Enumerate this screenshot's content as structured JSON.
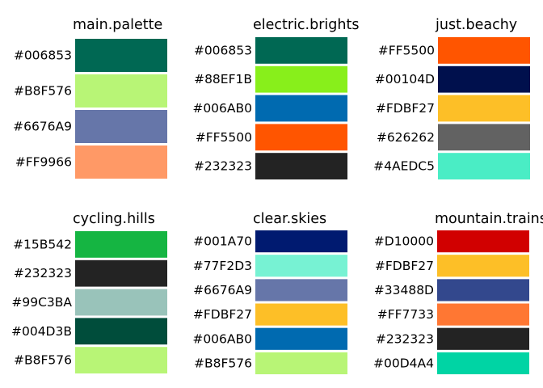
{
  "chart_data": [
    {
      "type": "bar",
      "title": "main.palette",
      "categories": [
        "#006853",
        "#B8F576",
        "#6676A9",
        "#FF9966"
      ],
      "colors": [
        "#006853",
        "#B8F576",
        "#6676A9",
        "#FF9966"
      ]
    },
    {
      "type": "bar",
      "title": "electric.brights",
      "categories": [
        "#006853",
        "#88EF1B",
        "#006AB0",
        "#FF5500",
        "#232323"
      ],
      "colors": [
        "#006853",
        "#88EF1B",
        "#006AB0",
        "#FF5500",
        "#232323"
      ]
    },
    {
      "type": "bar",
      "title": "just.beachy",
      "categories": [
        "#FF5500",
        "#00104D",
        "#FDBF27",
        "#626262",
        "#4AEDC5"
      ],
      "colors": [
        "#FF5500",
        "#00104D",
        "#FDBF27",
        "#626262",
        "#4AEDC5"
      ]
    },
    {
      "type": "bar",
      "title": "cycling.hills",
      "categories": [
        "#15B542",
        "#232323",
        "#99C3BA",
        "#004D3B",
        "#B8F576"
      ],
      "colors": [
        "#15B542",
        "#232323",
        "#99C3BA",
        "#004D3B",
        "#B8F576"
      ]
    },
    {
      "type": "bar",
      "title": "clear.skies",
      "categories": [
        "#001A70",
        "#77F2D3",
        "#6676A9",
        "#FDBF27",
        "#006AB0",
        "#B8F576"
      ],
      "colors": [
        "#001A70",
        "#77F2D3",
        "#6676A9",
        "#FDBF27",
        "#006AB0",
        "#B8F576"
      ]
    },
    {
      "type": "bar",
      "title": "mountain.trains",
      "categories": [
        "#D10000",
        "#FDBF27",
        "#33488D",
        "#FF7733",
        "#232323",
        "#00D4A4"
      ],
      "colors": [
        "#D10000",
        "#FDBF27",
        "#33488D",
        "#FF7733",
        "#232323",
        "#00D4A4"
      ]
    }
  ]
}
